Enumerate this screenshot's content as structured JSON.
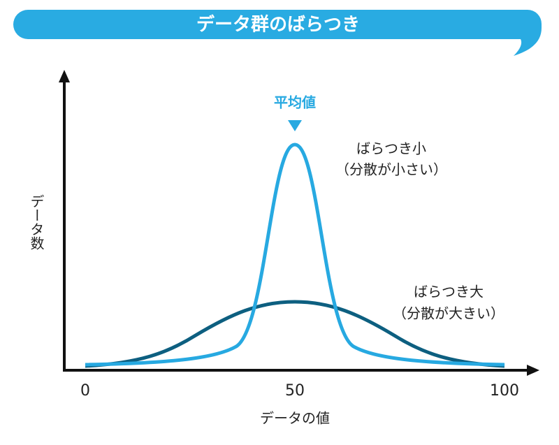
{
  "header": {
    "title": "データ群のばらつき"
  },
  "chart_data": {
    "type": "line",
    "x_label": "データの値",
    "y_label": "データ数",
    "xlim": [
      -5,
      108
    ],
    "xticks": [
      0,
      50,
      100
    ],
    "annotation": "平均値",
    "series": [
      {
        "name": "ばらつき小",
        "detail": "（分散が小さい）",
        "color": "#27a9e1"
      },
      {
        "name": "ばらつき大",
        "detail": "（分散が大きい）",
        "color": "#0d5f80"
      }
    ]
  }
}
